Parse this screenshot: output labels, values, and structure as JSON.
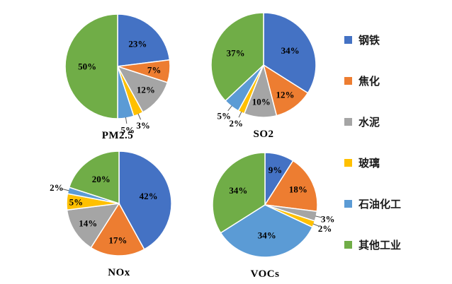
{
  "legend": {
    "items": [
      {
        "label": "钢铁",
        "color": "#4472C4"
      },
      {
        "label": "焦化",
        "color": "#ED7D31"
      },
      {
        "label": "水泥",
        "color": "#A5A5A5"
      },
      {
        "label": "玻璃",
        "color": "#FFC000"
      },
      {
        "label": "石油化工",
        "color": "#5B9BD5"
      },
      {
        "label": "其他工业",
        "color": "#70AD47"
      }
    ],
    "position": "right"
  },
  "chart_data": [
    {
      "type": "pie",
      "title": "PM2.5",
      "categories": [
        "钢铁",
        "焦化",
        "水泥",
        "玻璃",
        "石油化工",
        "其他工业"
      ],
      "values": [
        23,
        7,
        12,
        3,
        5,
        50
      ],
      "unit": "%",
      "start_angle_deg": 0,
      "direction": "clockwise",
      "outside_label_indices": [
        3,
        4
      ]
    },
    {
      "type": "pie",
      "title": "SO2",
      "categories": [
        "钢铁",
        "焦化",
        "水泥",
        "玻璃",
        "石油化工",
        "其他工业"
      ],
      "values": [
        34,
        12,
        10,
        2,
        5,
        37
      ],
      "unit": "%",
      "start_angle_deg": 0,
      "direction": "clockwise",
      "outside_label_indices": [
        3,
        4
      ]
    },
    {
      "type": "pie",
      "title": "NOx",
      "categories": [
        "钢铁",
        "焦化",
        "水泥",
        "玻璃",
        "石油化工",
        "其他工业"
      ],
      "values": [
        42,
        17,
        14,
        5,
        2,
        20
      ],
      "unit": "%",
      "start_angle_deg": 0,
      "direction": "clockwise",
      "outside_label_indices": [
        4
      ]
    },
    {
      "type": "pie",
      "title": "VOCs",
      "categories": [
        "钢铁",
        "焦化",
        "水泥",
        "玻璃",
        "石油化工",
        "其他工业"
      ],
      "values": [
        9,
        18,
        3,
        2,
        34,
        34
      ],
      "unit": "%",
      "start_angle_deg": 0,
      "direction": "clockwise",
      "outside_label_indices": [
        2,
        3
      ]
    }
  ]
}
